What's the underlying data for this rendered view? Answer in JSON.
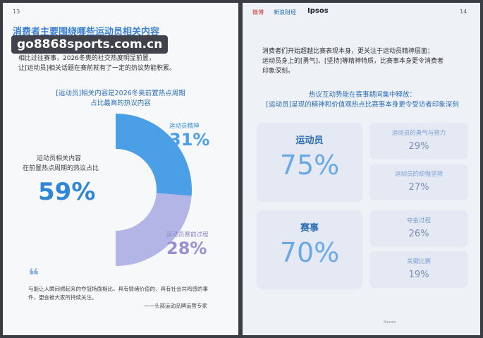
{
  "left_page": {
    "page_number": "13",
    "title": "消费者主要围绕哪些运动员相关内容",
    "watermark": "go8868sports.com.cn",
    "intro": [
      "相比过往赛事，2026冬奥的社交热度明显前置，",
      "让[运动员]相关话题在赛前就有了一定的热议势能积累。"
    ],
    "chart_title": [
      "[运动员]相关内容是2026冬奥前置热点周期",
      "占比最高的热议内容"
    ],
    "total_label": [
      "运动员相关内容",
      "在前置热点周期的热议占比"
    ],
    "total_value": "59%",
    "segments": [
      {
        "label": "运动员精神",
        "value": 31,
        "value_label": "31%",
        "color": "#4a9fe6"
      },
      {
        "label": "运动员赛前过程",
        "value": 28,
        "value_label": "28%",
        "color": "#b3b5e6"
      }
    ],
    "quote": "与能让人瞬间燃起来的夺冠场面相比，具有情绪价值的、具有社会共鸣感的事件，更会被大家所持续关注。",
    "quote_source": "——头部运动品牌运营专家"
  },
  "right_page": {
    "page_number": "14",
    "logos": [
      "微博",
      "新浪财经",
      "Ipsos"
    ],
    "intro": [
      "消费者们开始超越比赛表现本身，更关注于运动员精神层面；",
      "运动员身上的[勇气]、[坚持]等精神特质，比赛事本身更令消费者",
      "印象深刻。"
    ],
    "section_title": [
      "热议互动势能在赛事期间集中释放：",
      "[运动员]呈现的精神和价值观热点比赛事本身更令受访者印象深刻"
    ],
    "groups": [
      {
        "name": "运动员",
        "value": "75%",
        "items": [
          {
            "label": "运动员的勇气与努力",
            "value": "29%"
          },
          {
            "label": "运动员的顽强坚持",
            "value": "27%"
          }
        ]
      },
      {
        "name": "赛事",
        "value": "70%",
        "items": [
          {
            "label": "夺金过程",
            "value": "26%"
          },
          {
            "label": "关键比赛",
            "value": "19%"
          }
        ]
      }
    ]
  }
}
